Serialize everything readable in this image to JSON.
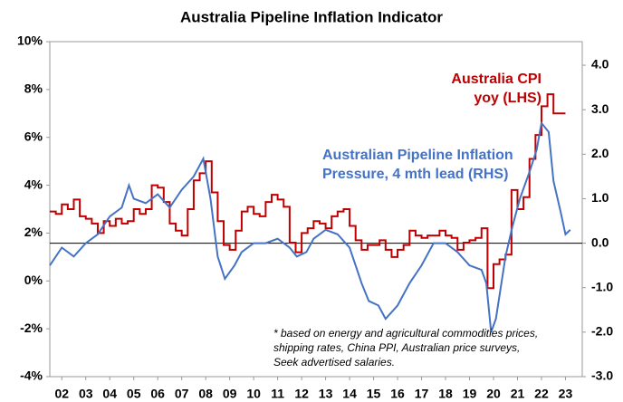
{
  "chart_data": {
    "type": "line",
    "title": "Australia Pipeline Inflation Indicator",
    "annotations": [
      {
        "lines": [
          "Australia CPI",
          "yoy (LHS)"
        ],
        "color": "#c00000"
      },
      {
        "lines": [
          "Australian Pipeline Inflation",
          "Pressure, 4 mth lead (RHS)"
        ],
        "color": "#4472c4"
      },
      {
        "lines": [
          "* based on energy and agricultural commodities prices,",
          "shipping rates, China PPI, Australian price surveys,",
          "Seek advertised salaries."
        ],
        "color": "#000000"
      }
    ],
    "xlim": [
      2002,
      2024.2
    ],
    "xticks": [
      {
        "value": 2002.5,
        "label": "02"
      },
      {
        "value": 2003.5,
        "label": "03"
      },
      {
        "value": 2004.5,
        "label": "04"
      },
      {
        "value": 2005.5,
        "label": "05"
      },
      {
        "value": 2006.5,
        "label": "06"
      },
      {
        "value": 2007.5,
        "label": "07"
      },
      {
        "value": 2008.5,
        "label": "08"
      },
      {
        "value": 2009.5,
        "label": "09"
      },
      {
        "value": 2010.5,
        "label": "10"
      },
      {
        "value": 2011.5,
        "label": "11"
      },
      {
        "value": 2012.5,
        "label": "12"
      },
      {
        "value": 2013.5,
        "label": "13"
      },
      {
        "value": 2014.5,
        "label": "14"
      },
      {
        "value": 2015.5,
        "label": "15"
      },
      {
        "value": 2016.5,
        "label": "16"
      },
      {
        "value": 2017.5,
        "label": "17"
      },
      {
        "value": 2018.5,
        "label": "18"
      },
      {
        "value": 2019.5,
        "label": "19"
      },
      {
        "value": 2020.5,
        "label": "20"
      },
      {
        "value": 2021.5,
        "label": "21"
      },
      {
        "value": 2022.5,
        "label": "22"
      },
      {
        "value": 2023.5,
        "label": "23"
      }
    ],
    "ylim": [
      -4,
      10
    ],
    "yticks": [
      {
        "value": -4,
        "label": "-4%"
      },
      {
        "value": -2,
        "label": "-2%"
      },
      {
        "value": 0,
        "label": "0%"
      },
      {
        "value": 2,
        "label": "2%"
      },
      {
        "value": 4,
        "label": "4%"
      },
      {
        "value": 6,
        "label": "6%"
      },
      {
        "value": 8,
        "label": "8%"
      },
      {
        "value": 10,
        "label": "10%"
      }
    ],
    "y2lim": [
      -3,
      4.53
    ],
    "y2ticks": [
      {
        "value": -3,
        "label": "-3.0"
      },
      {
        "value": -2,
        "label": "-2.0"
      },
      {
        "value": -1,
        "label": "-1.0"
      },
      {
        "value": 0,
        "label": "0.0"
      },
      {
        "value": 1,
        "label": "1.0"
      },
      {
        "value": 2,
        "label": "2.0"
      },
      {
        "value": 3,
        "label": "3.0"
      },
      {
        "value": 4,
        "label": "4.0"
      }
    ],
    "series": [
      {
        "name": "Australia CPI yoy (LHS)",
        "color": "#c00000",
        "step": true,
        "x": [
          2002,
          2002.25,
          2002.5,
          2002.75,
          2003,
          2003.25,
          2003.5,
          2003.75,
          2004,
          2004.25,
          2004.5,
          2004.75,
          2005,
          2005.25,
          2005.5,
          2005.75,
          2006,
          2006.25,
          2006.5,
          2006.75,
          2007,
          2007.25,
          2007.5,
          2007.75,
          2008,
          2008.25,
          2008.5,
          2008.75,
          2009,
          2009.25,
          2009.5,
          2009.75,
          2010,
          2010.25,
          2010.5,
          2010.75,
          2011,
          2011.25,
          2011.5,
          2011.75,
          2012,
          2012.25,
          2012.5,
          2012.75,
          2013,
          2013.25,
          2013.5,
          2013.75,
          2014,
          2014.25,
          2014.5,
          2014.75,
          2015,
          2015.25,
          2015.5,
          2015.75,
          2016,
          2016.25,
          2016.5,
          2016.75,
          2017,
          2017.25,
          2017.5,
          2017.75,
          2018,
          2018.25,
          2018.5,
          2018.75,
          2019,
          2019.25,
          2019.5,
          2019.75,
          2020,
          2020.25,
          2020.5,
          2020.75,
          2021,
          2021.25,
          2021.5,
          2021.75,
          2022,
          2022.25,
          2022.5,
          2022.75,
          2023,
          2023.25
        ],
        "values": [
          2.9,
          2.8,
          3.2,
          3.0,
          3.4,
          2.7,
          2.6,
          2.4,
          2.0,
          2.5,
          2.3,
          2.6,
          2.4,
          2.5,
          3.0,
          2.8,
          3.0,
          4.0,
          3.9,
          3.3,
          2.4,
          2.1,
          1.9,
          3.0,
          4.2,
          4.5,
          5.0,
          3.7,
          2.5,
          1.5,
          1.3,
          2.1,
          2.9,
          3.1,
          2.8,
          2.7,
          3.3,
          3.6,
          3.4,
          3.1,
          1.6,
          1.2,
          2.0,
          2.2,
          2.5,
          2.4,
          2.2,
          2.7,
          2.9,
          3.0,
          2.3,
          1.7,
          1.3,
          1.5,
          1.5,
          1.7,
          1.3,
          1.0,
          1.3,
          1.5,
          2.1,
          1.9,
          1.8,
          1.9,
          1.9,
          2.1,
          1.9,
          1.8,
          1.3,
          1.6,
          1.7,
          1.8,
          2.2,
          -0.3,
          0.7,
          0.9,
          1.1,
          3.8,
          3.0,
          3.5,
          5.1,
          6.1,
          7.3,
          7.8,
          7.0,
          7.0
        ]
      },
      {
        "name": "Australian Pipeline Inflation Pressure, 4 mth lead (RHS)",
        "color": "#4472c4",
        "axis": "y2",
        "x": [
          2002,
          2002.5,
          2003,
          2003.5,
          2004,
          2004.5,
          2005,
          2005.3,
          2005.5,
          2006,
          2006.5,
          2007,
          2007.5,
          2008,
          2008.4,
          2008.7,
          2009,
          2009.3,
          2009.7,
          2010,
          2010.5,
          2011,
          2011.5,
          2012,
          2012.3,
          2012.7,
          2013,
          2013.5,
          2014,
          2014.5,
          2015,
          2015.3,
          2015.7,
          2016,
          2016.5,
          2017,
          2017.5,
          2018,
          2018.5,
          2019,
          2019.5,
          2020,
          2020.2,
          2020.4,
          2020.6,
          2021,
          2021.3,
          2021.6,
          2022,
          2022.3,
          2022.5,
          2022.8,
          2023,
          2023.3,
          2023.5,
          2023.7
        ],
        "values": [
          -0.5,
          -0.1,
          -0.3,
          0.0,
          0.2,
          0.6,
          0.8,
          1.3,
          1.0,
          0.9,
          1.1,
          0.8,
          1.2,
          1.5,
          1.9,
          1.0,
          -0.3,
          -0.8,
          -0.5,
          -0.2,
          0.0,
          0.0,
          0.1,
          -0.1,
          -0.3,
          -0.2,
          0.1,
          0.3,
          0.2,
          -0.1,
          -0.9,
          -1.3,
          -1.4,
          -1.7,
          -1.4,
          -0.9,
          -0.5,
          0.0,
          0.0,
          -0.2,
          -0.5,
          -0.6,
          -0.9,
          -2.0,
          -1.7,
          -0.3,
          0.4,
          1.0,
          1.6,
          2.1,
          2.7,
          2.5,
          1.4,
          0.7,
          0.2,
          0.3
        ]
      }
    ]
  }
}
